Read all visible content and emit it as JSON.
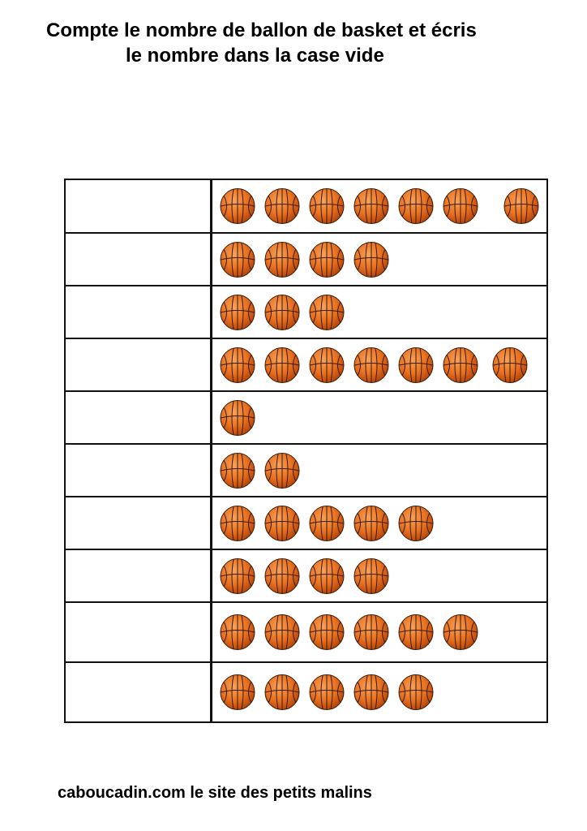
{
  "header": {
    "line1": "Compte le nombre de ballon de basket et écris",
    "line2": "le nombre dans la case vide"
  },
  "rows": [
    {
      "count": 7,
      "answer": ""
    },
    {
      "count": 4,
      "answer": ""
    },
    {
      "count": 3,
      "answer": ""
    },
    {
      "count": 7,
      "answer": ""
    },
    {
      "count": 1,
      "answer": ""
    },
    {
      "count": 2,
      "answer": ""
    },
    {
      "count": 5,
      "answer": ""
    },
    {
      "count": 4,
      "answer": ""
    },
    {
      "count": 6,
      "answer": ""
    },
    {
      "count": 5,
      "answer": ""
    }
  ],
  "icon": "basketball-icon",
  "colors": {
    "ball": "#e8711f",
    "ball_dark": "#b8480c",
    "seam": "#3a1a08",
    "border": "#111111"
  },
  "footer": "caboucadin.com le site des petits malins"
}
